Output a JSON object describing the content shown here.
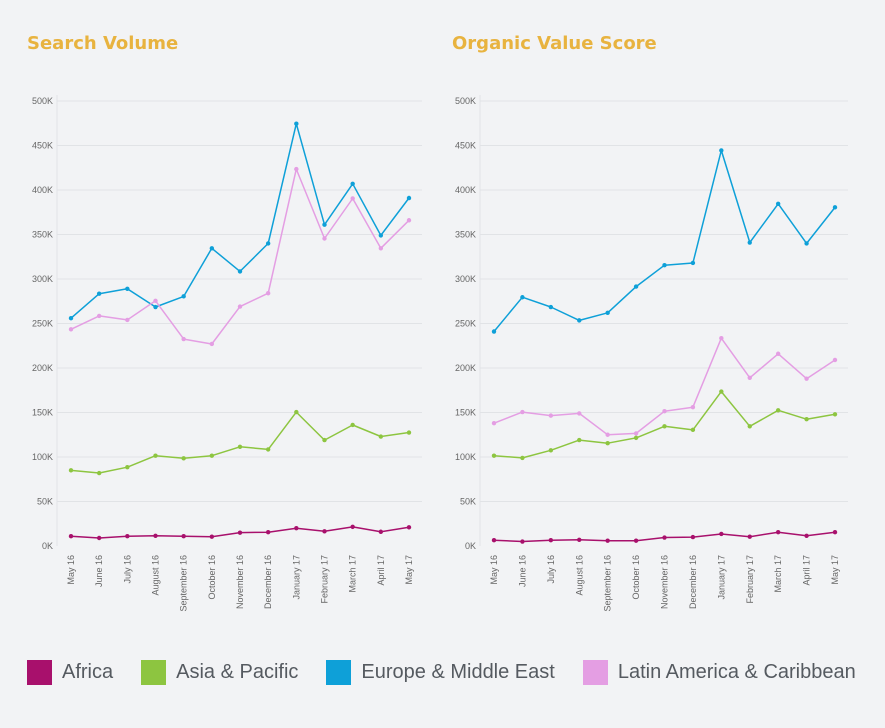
{
  "colors": {
    "Africa": "#a8106c",
    "Asia & Pacific": "#8dc540",
    "Europe & Middle East": "#0ea0d8",
    "Latin America & Caribbean": "#e49ee3",
    "title": "#e8b33f",
    "grid": "#e1e3e6",
    "tick": "#666666"
  },
  "legend": [
    {
      "label": "Africa",
      "color": "#a8106c"
    },
    {
      "label": "Asia & Pacific",
      "color": "#8dc540"
    },
    {
      "label": "Europe & Middle East",
      "color": "#0ea0d8"
    },
    {
      "label": "Latin America & Caribbean",
      "color": "#e49ee3"
    }
  ],
  "chart_data": [
    {
      "type": "line",
      "title": "Search Volume",
      "categories": [
        "May 16",
        "June 16",
        "July 16",
        "August 16",
        "September 16",
        "October 16",
        "November 16",
        "December 16",
        "January 17",
        "February 17",
        "March 17",
        "April 17",
        "May 17"
      ],
      "yticks": [
        "0K",
        "50K",
        "100K",
        "150K",
        "200K",
        "250K",
        "300K",
        "350K",
        "400K",
        "450K",
        "500K"
      ],
      "ylim": [
        0,
        500000
      ],
      "grid": true,
      "series": [
        {
          "name": "Africa",
          "values": [
            11000,
            9000,
            11000,
            11500,
            11000,
            10500,
            15000,
            15500,
            20000,
            16500,
            21500,
            16000,
            21000
          ]
        },
        {
          "name": "Asia & Pacific",
          "values": [
            85000,
            82000,
            88500,
            101500,
            98500,
            101500,
            111500,
            108500,
            150500,
            119000,
            136000,
            123000,
            127500
          ]
        },
        {
          "name": "Europe & Middle East",
          "values": [
            256000,
            283500,
            289000,
            268500,
            280500,
            334500,
            308500,
            340000,
            474500,
            361000,
            407000,
            349000,
            391000
          ]
        },
        {
          "name": "Latin America & Caribbean",
          "values": [
            243500,
            258500,
            254000,
            275500,
            232500,
            227000,
            269000,
            284000,
            423500,
            345500,
            390500,
            334500,
            366000
          ]
        }
      ]
    },
    {
      "type": "line",
      "title": "Organic Value Score",
      "categories": [
        "May 16",
        "June 16",
        "July 16",
        "August 16",
        "September 16",
        "October 16",
        "November 16",
        "December 16",
        "January 17",
        "February 17",
        "March 17",
        "April 17",
        "May 17"
      ],
      "yticks": [
        "0K",
        "50K",
        "100K",
        "150K",
        "200K",
        "250K",
        "300K",
        "350K",
        "400K",
        "450K",
        "500K"
      ],
      "ylim": [
        0,
        500000
      ],
      "grid": true,
      "series": [
        {
          "name": "Africa",
          "values": [
            6500,
            5000,
            6500,
            7000,
            6000,
            6000,
            9500,
            10000,
            13500,
            10500,
            15500,
            11500,
            15500
          ]
        },
        {
          "name": "Asia & Pacific",
          "values": [
            101500,
            99000,
            107500,
            119000,
            115500,
            121500,
            134500,
            130500,
            173500,
            134500,
            152500,
            142500,
            148000
          ]
        },
        {
          "name": "Europe & Middle East",
          "values": [
            241000,
            279500,
            268500,
            253500,
            262000,
            291500,
            315500,
            318000,
            444500,
            341000,
            384500,
            340000,
            380500
          ]
        },
        {
          "name": "Latin America & Caribbean",
          "values": [
            138000,
            150500,
            146500,
            149000,
            125000,
            126500,
            151500,
            156000,
            233500,
            189000,
            216000,
            188000,
            209000
          ]
        }
      ]
    }
  ]
}
